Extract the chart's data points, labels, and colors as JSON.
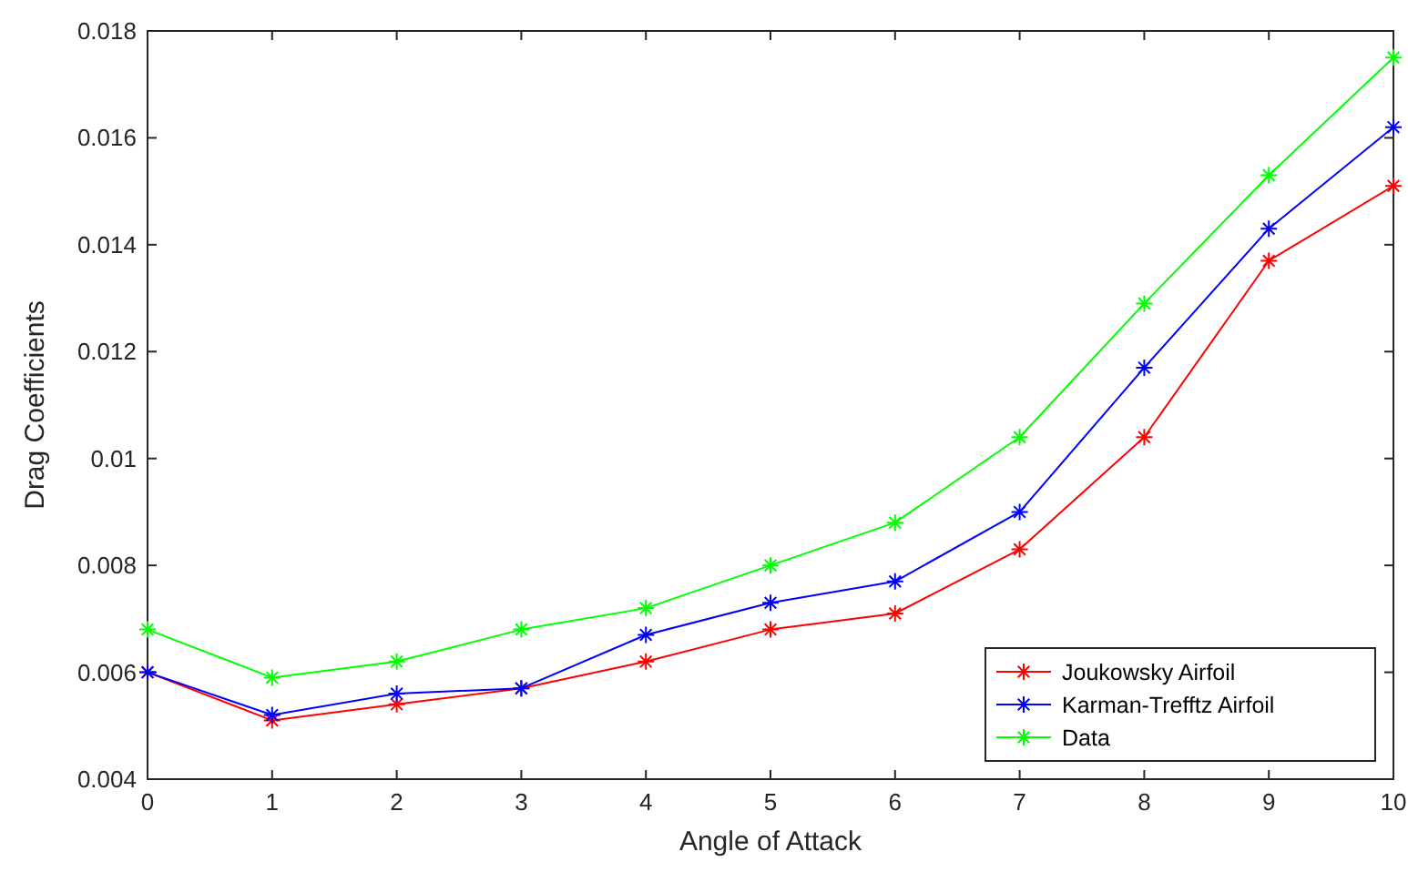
{
  "chart_data": {
    "type": "line",
    "xlabel": "Angle of Attack",
    "ylabel": "Drag Coefficients",
    "x": [
      0,
      1,
      2,
      3,
      4,
      5,
      6,
      7,
      8,
      9,
      10
    ],
    "xlim": [
      0,
      10
    ],
    "xticks": [
      0,
      1,
      2,
      3,
      4,
      5,
      6,
      7,
      8,
      9,
      10
    ],
    "ylim": [
      0.004,
      0.018
    ],
    "yticks": [
      {
        "value": 0.004,
        "label": "0.004"
      },
      {
        "value": 0.006,
        "label": "0.006"
      },
      {
        "value": 0.008,
        "label": "0.008"
      },
      {
        "value": 0.01,
        "label": "0.01"
      },
      {
        "value": 0.012,
        "label": "0.012"
      },
      {
        "value": 0.014,
        "label": "0.014"
      },
      {
        "value": 0.016,
        "label": "0.016"
      },
      {
        "value": 0.018,
        "label": "0.018"
      }
    ],
    "grid": false,
    "legend": "bottom right",
    "marker": "cross",
    "line_style": "solid",
    "series": [
      {
        "name": "Joukowsky Airfoil",
        "color": "#ff0000",
        "values": [
          0.006,
          0.0051,
          0.0054,
          0.0057,
          0.0062,
          0.0068,
          0.0071,
          0.0083,
          0.0104,
          0.0137,
          0.0151
        ]
      },
      {
        "name": "Karman-Trefftz Airfoil",
        "color": "#0000ff",
        "values": [
          0.006,
          0.0052,
          0.0056,
          0.0057,
          0.0067,
          0.0073,
          0.0077,
          0.009,
          0.0117,
          0.0143,
          0.0162
        ]
      },
      {
        "name": "Data",
        "color": "#00ff00",
        "values": [
          0.0068,
          0.0059,
          0.0062,
          0.0068,
          0.0072,
          0.008,
          0.0088,
          0.0104,
          0.0129,
          0.0153,
          0.0175
        ]
      }
    ]
  }
}
